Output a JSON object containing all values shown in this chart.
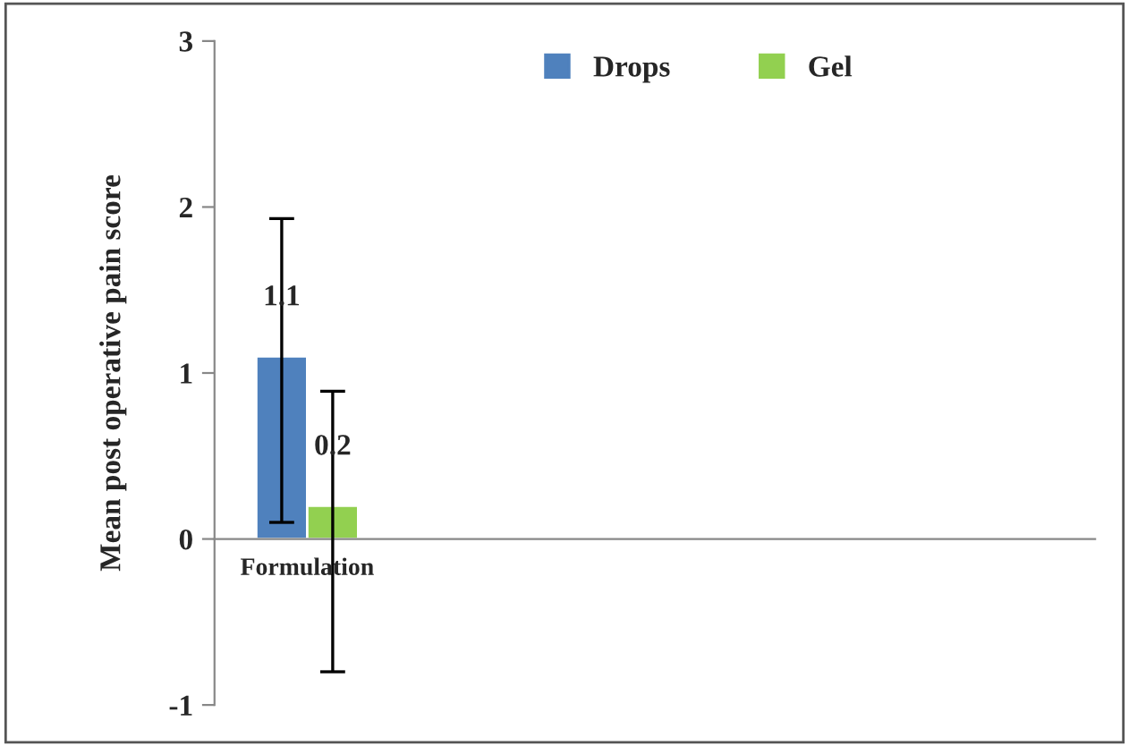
{
  "chart_data": {
    "type": "bar",
    "ylabel": "Mean post operative pain score",
    "categories": [
      "Formulation"
    ],
    "series": [
      {
        "name": "Drops",
        "color": "#4f81bd",
        "values": [
          1.1
        ],
        "errors": [
          [
            0.1,
            1.93
          ]
        ]
      },
      {
        "name": "Gel",
        "color": "#92d050",
        "values": [
          0.2
        ],
        "errors": [
          [
            -0.8,
            0.89
          ]
        ]
      }
    ],
    "ylim": [
      -1,
      3
    ],
    "yticks": [
      -1,
      0,
      1,
      2,
      3
    ],
    "data_labels": true,
    "legend": "top",
    "grid": false
  }
}
